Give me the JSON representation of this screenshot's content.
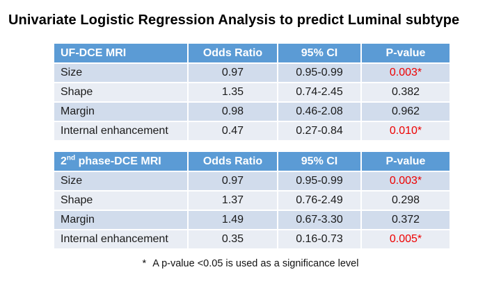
{
  "title": "Univariate Logistic Regression Analysis to predict Luminal subtype",
  "colors": {
    "header_bg": "#5B9BD5",
    "header_text": "#FFFFFF",
    "row_band_dark": "#D1DCEC",
    "row_band_light": "#E9EDF4",
    "significant_red": "#EE0000",
    "title_color": "#000000"
  },
  "tables": [
    {
      "header": {
        "label_base": "UF-DCE MRI",
        "label_sup": "",
        "label_rest": "",
        "odds": "Odds Ratio",
        "ci": "95% CI",
        "p": "P-value"
      },
      "rows": [
        {
          "label": "Size",
          "odds": "0.97",
          "ci": "0.95-0.99",
          "p": "0.003*",
          "sig": "true"
        },
        {
          "label": "Shape",
          "odds": "1.35",
          "ci": "0.74-2.45",
          "p": "0.382",
          "sig": "false"
        },
        {
          "label": "Margin",
          "odds": "0.98",
          "ci": "0.46-2.08",
          "p": "0.962",
          "sig": "false"
        },
        {
          "label": "Internal enhancement",
          "odds": "0.47",
          "ci": "0.27-0.84",
          "p": "0.010*",
          "sig": "true"
        }
      ]
    },
    {
      "header": {
        "label_base": "2",
        "label_sup": "nd",
        "label_rest": " phase-DCE MRI",
        "odds": "Odds Ratio",
        "ci": "95% CI",
        "p": "P-value"
      },
      "rows": [
        {
          "label": "Size",
          "odds": "0.97",
          "ci": "0.95-0.99",
          "p": "0.003*",
          "sig": "true"
        },
        {
          "label": "Shape",
          "odds": "1.37",
          "ci": "0.76-2.49",
          "p": "0.298",
          "sig": "false"
        },
        {
          "label": "Margin",
          "odds": "1.49",
          "ci": "0.67-3.30",
          "p": "0.372",
          "sig": "false"
        },
        {
          "label": "Internal enhancement",
          "odds": "0.35",
          "ci": "0.16-0.73",
          "p": "0.005*",
          "sig": "true"
        }
      ]
    }
  ],
  "footnote": {
    "marker": "*",
    "text": "A p-value <0.05 is used as a significance level"
  }
}
